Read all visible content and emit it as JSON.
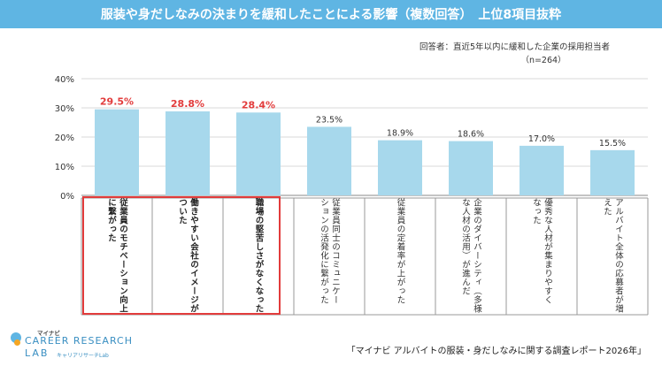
{
  "title": "服装や身だしなみの決まりを緩和したことによる影響（複数回答）　上位8項目抜粋",
  "respondent": {
    "line1": "回答者：直近5年以内に緩和した企業の採用担当者",
    "line2": "（n=264）"
  },
  "source": "「マイナビ アルバイトの服装・身だしなみに関する調査レポート2026年」",
  "logo": {
    "top": "マイナビ",
    "main": "CAREER RESEARCH",
    "lab": "LAB",
    "sub": "キャリアリサーチLab"
  },
  "colors": {
    "bar": "#a7d8ec",
    "highlight": "#e23c3c",
    "header": "#5fb5e3"
  },
  "chart_data": {
    "type": "bar",
    "title": "服装や身だしなみの決まりを緩和したことによる影響（複数回答）　上位8項目抜粋",
    "ylim": [
      0,
      40
    ],
    "yticks": [
      "0%",
      "10%",
      "20%",
      "30%",
      "40%"
    ],
    "values": [
      29.5,
      28.8,
      28.4,
      23.5,
      18.9,
      18.6,
      17.0,
      15.5
    ],
    "labels": [
      "29.5%",
      "28.8%",
      "28.4%",
      "23.5%",
      "18.9%",
      "18.6%",
      "17.0%",
      "15.5%"
    ],
    "highlighted": [
      true,
      true,
      true,
      false,
      false,
      false,
      false,
      false
    ],
    "categories": [
      [
        "従業員のモチベーション向上",
        "に繋がった"
      ],
      [
        "働きやすい会社のイメージが",
        "ついた"
      ],
      [
        "職場の堅苦しさがなくなった"
      ],
      [
        "従業員同士のコミュニケー",
        "ションの活発化に繋がった"
      ],
      [
        "従業員の定着率が上がった"
      ],
      [
        "企業のダイバーシティ（多様",
        "な人材の活用）が進んだ"
      ],
      [
        "優秀な人材が集まりやすく",
        "なった"
      ],
      [
        "アルバイト全体の応募者が増",
        "えた"
      ]
    ]
  }
}
